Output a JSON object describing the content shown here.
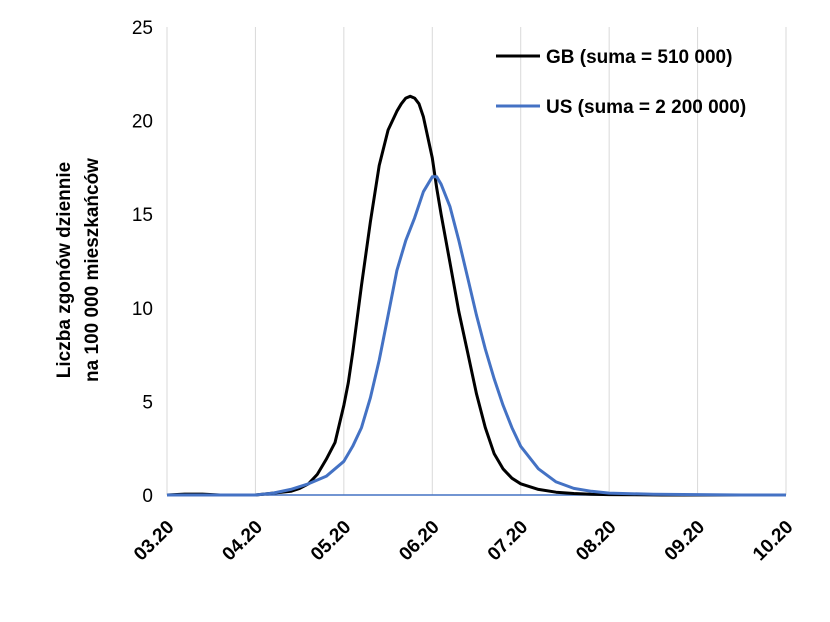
{
  "chart_data": {
    "type": "line",
    "title": "",
    "ylabel_lines": [
      "Liczba zgonów dziennie",
      "na 100 000 mieszkańców"
    ],
    "xlabel": "",
    "x_ticks": [
      "03.20",
      "04.20",
      "05.20",
      "06.20",
      "07.20",
      "08.20",
      "09.20",
      "10.20"
    ],
    "y_ticks": [
      "0",
      "5",
      "10",
      "15",
      "20",
      "25"
    ],
    "ylim": [
      0,
      25
    ],
    "xlim": [
      0,
      7
    ],
    "grid": "vertical",
    "legend_position": "top-right",
    "colors": {
      "GB": "#000000",
      "US": "#4472c4",
      "grid": "#d9d9d9",
      "axis": "#4472c4"
    },
    "series": [
      {
        "name": "GB (suma = 510 000)",
        "color": "#000000",
        "x": [
          0,
          0.2,
          0.4,
          0.6,
          0.8,
          1.0,
          1.2,
          1.4,
          1.5,
          1.6,
          1.7,
          1.8,
          1.9,
          2.0,
          2.05,
          2.1,
          2.2,
          2.3,
          2.4,
          2.5,
          2.6,
          2.65,
          2.7,
          2.75,
          2.8,
          2.85,
          2.9,
          3.0,
          3.05,
          3.1,
          3.2,
          3.3,
          3.4,
          3.5,
          3.6,
          3.7,
          3.8,
          3.9,
          4.0,
          4.2,
          4.4,
          4.6,
          4.8,
          5.0,
          5.3,
          5.6,
          6.0,
          6.5,
          7.0
        ],
        "y": [
          0,
          0.05,
          0.05,
          0,
          0,
          0,
          0.1,
          0.2,
          0.35,
          0.6,
          1.1,
          1.9,
          2.8,
          4.8,
          6.0,
          7.6,
          11.2,
          14.6,
          17.6,
          19.5,
          20.5,
          20.9,
          21.2,
          21.3,
          21.2,
          20.9,
          20.2,
          18.0,
          16.4,
          15.0,
          12.4,
          9.8,
          7.6,
          5.4,
          3.6,
          2.2,
          1.4,
          0.9,
          0.6,
          0.3,
          0.15,
          0.08,
          0.04,
          0.02,
          0.01,
          0,
          0,
          0,
          0
        ]
      },
      {
        "name": "US (suma = 2 200 000)",
        "color": "#4472c4",
        "x": [
          0,
          0.5,
          1.0,
          1.2,
          1.4,
          1.6,
          1.8,
          2.0,
          2.1,
          2.2,
          2.3,
          2.4,
          2.5,
          2.6,
          2.7,
          2.8,
          2.9,
          3.0,
          3.05,
          3.1,
          3.2,
          3.3,
          3.4,
          3.5,
          3.6,
          3.7,
          3.8,
          3.9,
          4.0,
          4.2,
          4.4,
          4.6,
          4.8,
          5.0,
          5.5,
          6.0,
          6.5,
          7.0
        ],
        "y": [
          0,
          0,
          0,
          0.1,
          0.3,
          0.6,
          1.0,
          1.8,
          2.6,
          3.6,
          5.2,
          7.2,
          9.6,
          12.0,
          13.6,
          14.8,
          16.2,
          17.0,
          17.0,
          16.6,
          15.4,
          13.6,
          11.6,
          9.6,
          7.8,
          6.2,
          4.8,
          3.6,
          2.6,
          1.4,
          0.7,
          0.35,
          0.2,
          0.1,
          0.04,
          0.02,
          0,
          0
        ]
      }
    ]
  }
}
